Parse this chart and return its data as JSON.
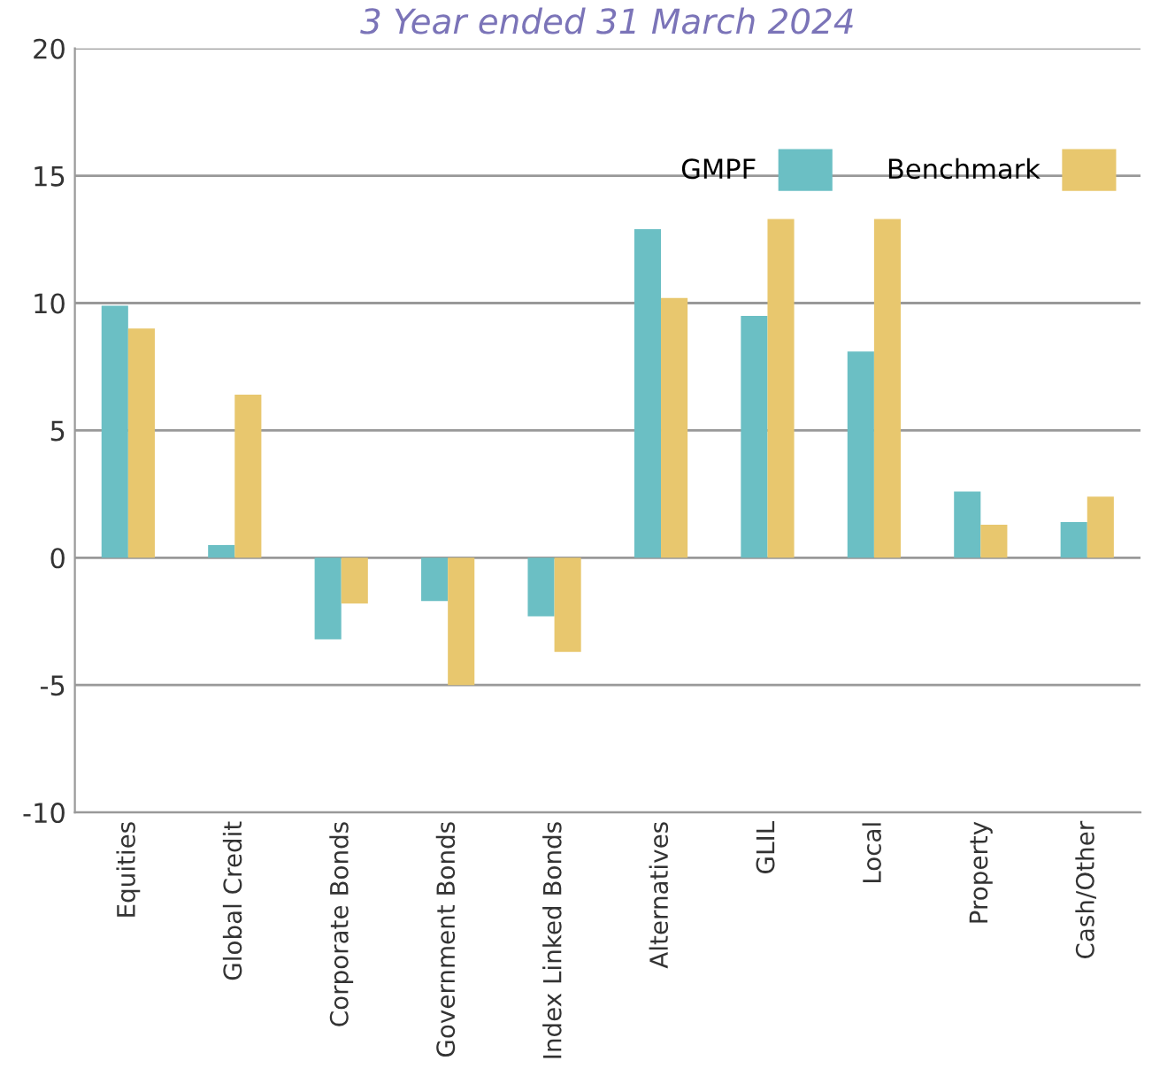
{
  "chart_data": {
    "type": "bar",
    "title": "3 Year ended 31 March 2024",
    "categories": [
      "Equities",
      "Global Credit",
      "Corporate Bonds",
      "Government Bonds",
      "Index Linked Bonds",
      "Alternatives",
      "GLIL",
      "Local",
      "Property",
      "Cash/Other"
    ],
    "series": [
      {
        "name": "GMPF",
        "color": "#6bbfc4",
        "values": [
          9.9,
          0.5,
          -3.2,
          -1.7,
          -2.3,
          12.9,
          9.5,
          8.1,
          2.6,
          1.4
        ]
      },
      {
        "name": "Benchmark",
        "color": "#e8c76e",
        "values": [
          9.0,
          6.4,
          -1.8,
          -5.0,
          -3.7,
          10.2,
          13.3,
          13.3,
          1.3,
          2.4
        ]
      }
    ],
    "ylim": [
      -10,
      20
    ],
    "yticks": [
      -10,
      -5,
      0,
      5,
      10,
      15,
      20
    ],
    "grid": "y",
    "legend": "top right"
  }
}
